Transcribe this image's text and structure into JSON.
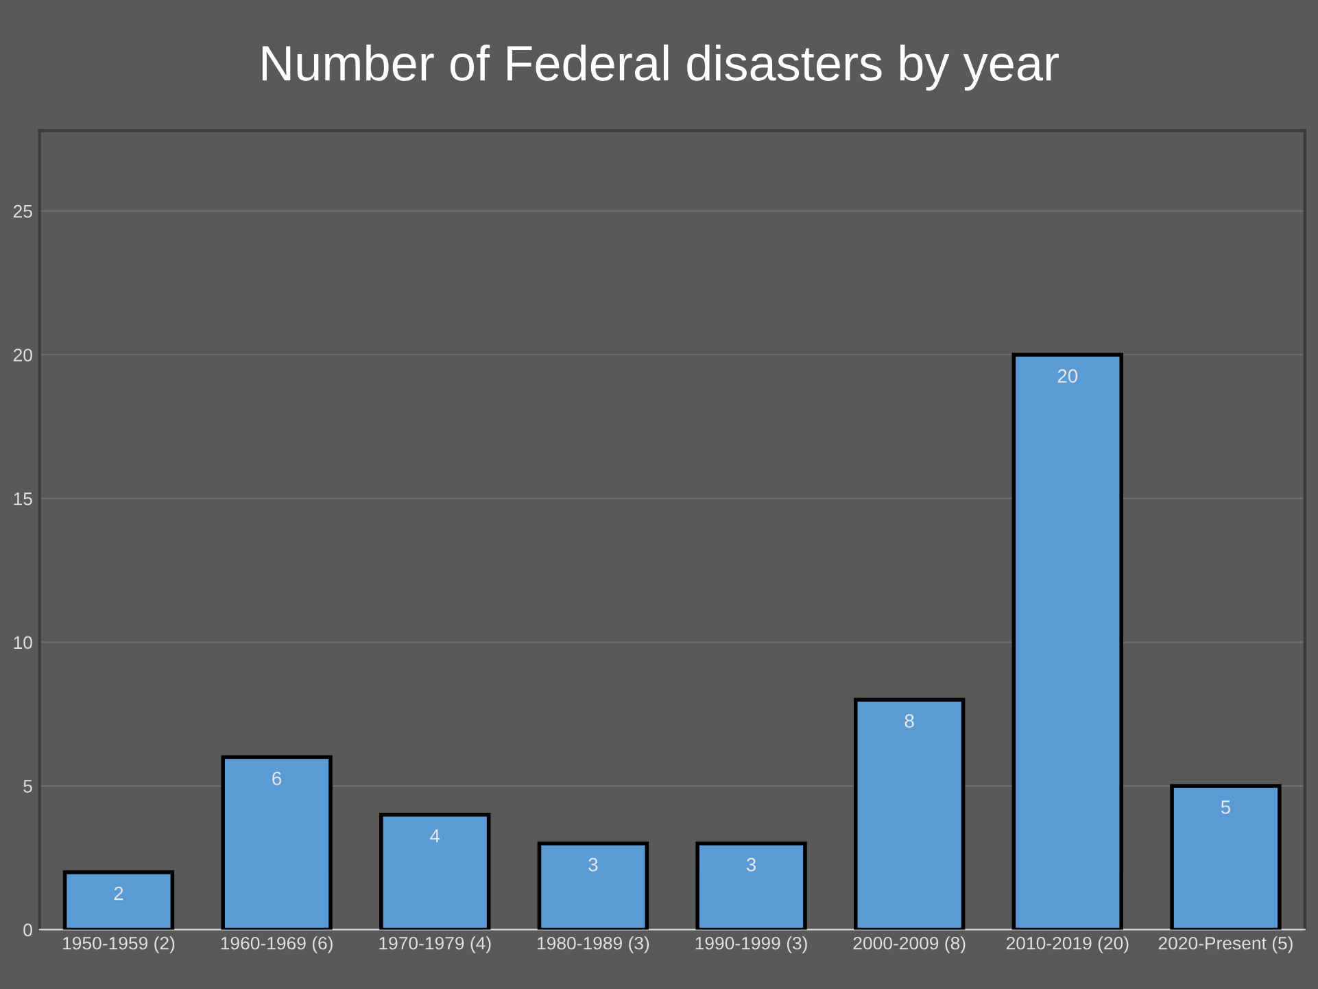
{
  "chart_data": {
    "type": "bar",
    "title": "Number of Federal disasters by year",
    "categories": [
      "1950-1959 (2)",
      "1960-1969 (6)",
      "1970-1979 (4)",
      "1980-1989 (3)",
      "1990-1999 (3)",
      "2000-2009 (8)",
      "2010-2019 (20)",
      "2020-Present (5)"
    ],
    "values": [
      2,
      6,
      4,
      3,
      3,
      8,
      20,
      5
    ],
    "color": "#5b9bd5",
    "ylim": [
      0,
      27.8
    ],
    "yticks": [
      0,
      5,
      10,
      15,
      20,
      25
    ],
    "grid": "y",
    "data_labels": true
  }
}
